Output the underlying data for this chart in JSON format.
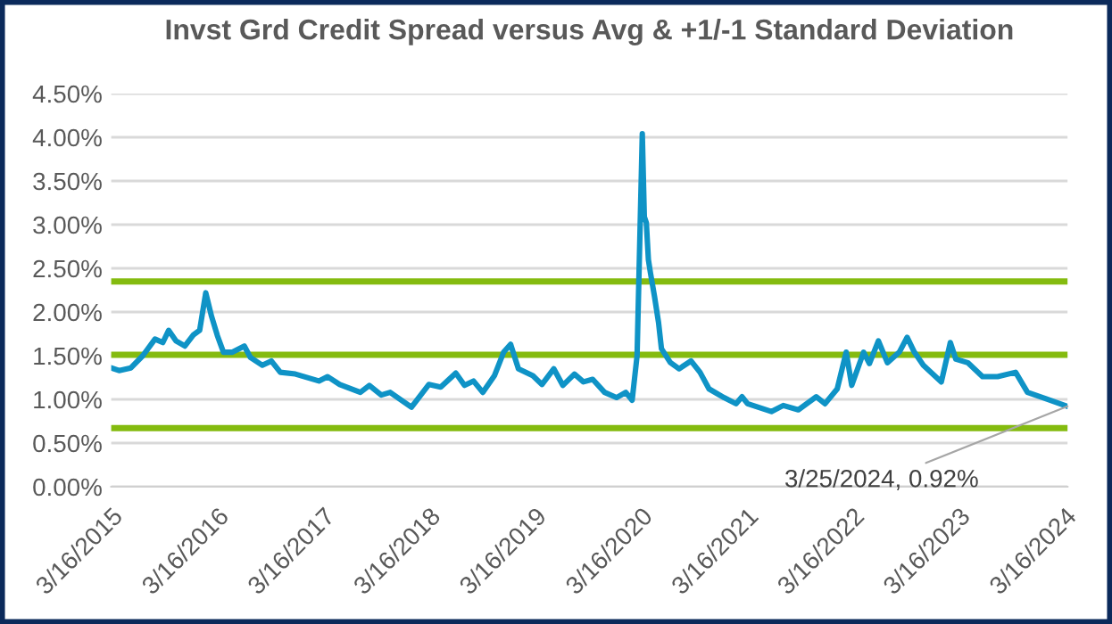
{
  "chart_data": {
    "type": "line",
    "title": "Invst Grd Credit Spread versus Avg & +1/-1 Standard Deviation",
    "x": [
      "2015-03-16",
      "2015-04-12",
      "2015-05-23",
      "2015-07-03",
      "2015-08-14",
      "2015-09-10",
      "2015-09-30",
      "2015-10-25",
      "2015-11-25",
      "2015-12-25",
      "2016-01-15",
      "2016-02-05",
      "2016-02-25",
      "2016-03-16",
      "2016-04-06",
      "2016-05-07",
      "2016-06-17",
      "2016-07-08",
      "2016-08-18",
      "2016-09-18",
      "2016-10-19",
      "2016-12-10",
      "2017-03-01",
      "2017-03-31",
      "2017-05-12",
      "2017-07-22",
      "2017-08-22",
      "2017-10-02",
      "2017-11-02",
      "2018-01-14",
      "2018-03-15",
      "2018-04-25",
      "2018-06-16",
      "2018-07-16",
      "2018-08-16",
      "2018-09-17",
      "2018-10-27",
      "2018-11-28",
      "2018-12-22",
      "2019-01-18",
      "2019-03-09",
      "2019-04-09",
      "2019-05-20",
      "2019-06-20",
      "2019-07-30",
      "2019-08-30",
      "2019-10-01",
      "2019-11-11",
      "2019-12-22",
      "2020-01-23",
      "2020-02-14",
      "2020-03-02",
      "2020-03-20",
      "2020-03-27",
      "2020-04-03",
      "2020-04-10",
      "2020-04-17",
      "2020-05-01",
      "2020-05-15",
      "2020-05-25",
      "2020-06-25",
      "2020-07-25",
      "2020-09-04",
      "2020-10-05",
      "2020-11-05",
      "2020-12-27",
      "2021-02-06",
      "2021-02-27",
      "2021-03-18",
      "2021-06-08",
      "2021-07-19",
      "2021-09-09",
      "2021-11-10",
      "2021-12-10",
      "2022-01-21",
      "2022-02-21",
      "2022-03-12",
      "2022-04-22",
      "2022-05-12",
      "2022-06-12",
      "2022-07-13",
      "2022-08-23",
      "2022-09-19",
      "2022-10-14",
      "2022-11-14",
      "2023-01-15",
      "2023-02-15",
      "2023-03-06",
      "2023-04-16",
      "2023-06-06",
      "2023-07-28",
      "2023-09-28",
      "2023-11-08",
      "2024-01-09",
      "2024-03-25"
    ],
    "series": [
      {
        "color": "#0f93c6",
        "values": [
          1.36,
          1.33,
          1.36,
          1.5,
          1.69,
          1.65,
          1.79,
          1.67,
          1.61,
          1.74,
          1.79,
          2.22,
          1.95,
          1.73,
          1.54,
          1.54,
          1.61,
          1.48,
          1.39,
          1.44,
          1.31,
          1.29,
          1.21,
          1.26,
          1.17,
          1.08,
          1.16,
          1.05,
          1.08,
          0.91,
          1.17,
          1.14,
          1.3,
          1.16,
          1.21,
          1.08,
          1.27,
          1.54,
          1.63,
          1.35,
          1.27,
          1.17,
          1.35,
          1.16,
          1.29,
          1.2,
          1.23,
          1.08,
          1.02,
          1.08,
          0.99,
          1.5,
          4.04,
          3.09,
          3.02,
          2.6,
          2.45,
          2.18,
          1.88,
          1.58,
          1.42,
          1.35,
          1.44,
          1.31,
          1.12,
          1.02,
          0.95,
          1.03,
          0.95,
          0.86,
          0.93,
          0.88,
          1.03,
          0.95,
          1.12,
          1.54,
          1.16,
          1.54,
          1.41,
          1.67,
          1.42,
          1.54,
          1.71,
          1.54,
          1.39,
          1.2,
          1.65,
          1.46,
          1.42,
          1.26,
          1.26,
          1.31,
          1.08,
          1.01,
          0.92
        ]
      }
    ],
    "xlim": [
      "2015-03-16",
      "2024-03-25"
    ],
    "xticks": [
      {
        "value": "2015-03-16",
        "label": "3/16/2015"
      },
      {
        "value": "2016-03-16",
        "label": "3/16/2016"
      },
      {
        "value": "2017-03-16",
        "label": "3/16/2017"
      },
      {
        "value": "2018-03-16",
        "label": "3/16/2018"
      },
      {
        "value": "2019-03-16",
        "label": "3/16/2019"
      },
      {
        "value": "2020-03-16",
        "label": "3/16/2020"
      },
      {
        "value": "2021-03-16",
        "label": "3/16/2021"
      },
      {
        "value": "2022-03-16",
        "label": "3/16/2022"
      },
      {
        "value": "2023-03-16",
        "label": "3/16/2023"
      },
      {
        "value": "2024-03-16",
        "label": "3/16/2024"
      }
    ],
    "ylim": [
      0,
      4.5
    ],
    "yticks": [
      {
        "value": 0,
        "label": "0.00%"
      },
      {
        "value": 0.5,
        "label": "0.50%"
      },
      {
        "value": 1,
        "label": "1.00%"
      },
      {
        "value": 1.5,
        "label": "1.50%"
      },
      {
        "value": 2,
        "label": "2.00%"
      },
      {
        "value": 2.5,
        "label": "2.50%"
      },
      {
        "value": 3,
        "label": "3.00%"
      },
      {
        "value": 3.5,
        "label": "3.50%"
      },
      {
        "value": 4,
        "label": "4.00%"
      },
      {
        "value": 4.5,
        "label": "4.50%"
      }
    ],
    "ref_lines": [
      {
        "axis": "y",
        "value": 2.35,
        "color": "#84bb0f"
      },
      {
        "axis": "y",
        "value": 1.51,
        "color": "#84bb0f"
      },
      {
        "axis": "y",
        "value": 0.67,
        "color": "#84bb0f"
      }
    ],
    "annotations": [
      {
        "text": "3/25/2024, 0.92%",
        "x": "2024-03-25",
        "y": 0.92
      }
    ],
    "grid": "y",
    "marker": "none",
    "line_style": "solid"
  }
}
